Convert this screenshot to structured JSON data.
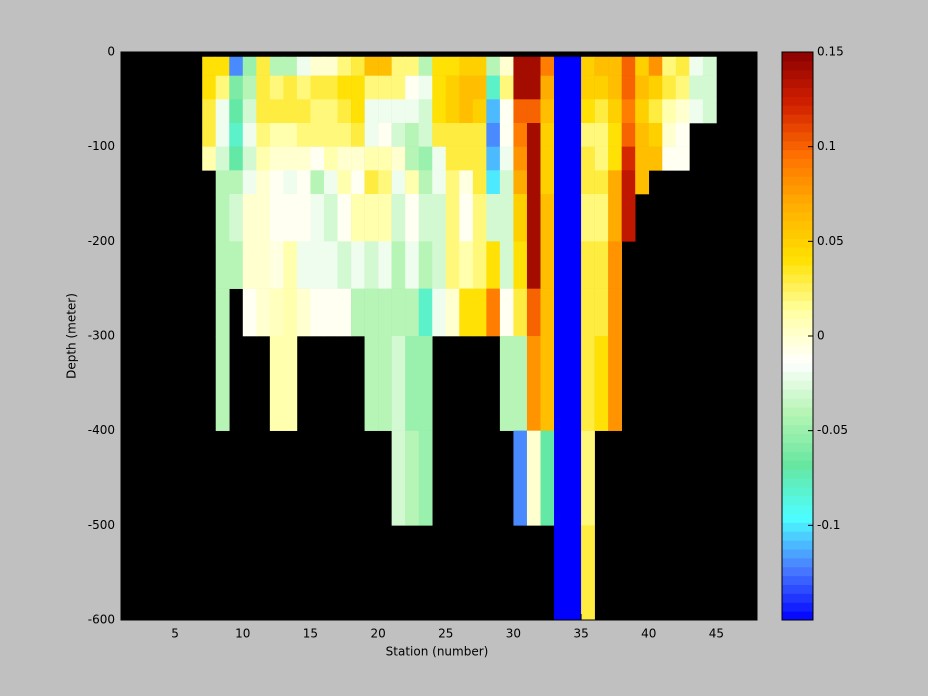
{
  "chart_data": {
    "type": "heatmap",
    "xlabel": "Station (number)",
    "ylabel": "Depth (meter)",
    "xlim": [
      1,
      48
    ],
    "ylim": [
      -600,
      0
    ],
    "xticks": [
      5,
      10,
      15,
      20,
      25,
      30,
      35,
      40,
      45
    ],
    "yticks": [
      -600,
      -500,
      -400,
      -300,
      -200,
      -100,
      0
    ],
    "clim": [
      -0.15,
      0.15
    ],
    "cticks": [
      -0.1,
      -0.05,
      0,
      0.05,
      0.1,
      0.15
    ],
    "colormap": [
      "#0000ff",
      "#4a7dff",
      "#4dffff",
      "#66e6a0",
      "#b4f5b4",
      "#ffffff",
      "#ffffa0",
      "#ffe000",
      "#ffb000",
      "#ff7000",
      "#d22000",
      "#8b0000"
    ],
    "background": "#000000",
    "x_edges": [
      7,
      8,
      9,
      10,
      11,
      12,
      13,
      14,
      15,
      16,
      17,
      18,
      19,
      20,
      21,
      22,
      23,
      24,
      25,
      26,
      27,
      28,
      29,
      30,
      31,
      32,
      33,
      34,
      35,
      36,
      37,
      38,
      39,
      40,
      41,
      42,
      43,
      44,
      45
    ],
    "y_edges": [
      -5,
      -25,
      -50,
      -75,
      -100,
      -125,
      -150,
      -200,
      -250,
      -300,
      -400,
      -500,
      -600
    ],
    "z": [
      [
        0.04,
        0.04,
        0.03,
        0.03,
        0.01,
        null,
        null,
        null,
        null,
        null,
        null,
        null
      ],
      [
        0.04,
        0.02,
        -0.02,
        -0.02,
        -0.03,
        -0.04,
        -0.04,
        -0.04,
        -0.04,
        -0.04,
        null,
        null
      ],
      [
        -0.12,
        -0.06,
        -0.07,
        -0.08,
        -0.07,
        -0.04,
        -0.03,
        -0.04,
        null,
        null,
        null,
        null
      ],
      [
        -0.05,
        -0.04,
        -0.03,
        -0.02,
        -0.03,
        -0.02,
        0,
        0,
        -0.01,
        null,
        null,
        null
      ],
      [
        0.03,
        0.03,
        0.03,
        0.02,
        0.01,
        0,
        0,
        0,
        0,
        null,
        null,
        null
      ],
      [
        -0.04,
        0.02,
        0.03,
        0.01,
        0,
        -0.01,
        -0.01,
        -0.005,
        0.005,
        0.01,
        null,
        null
      ],
      [
        -0.04,
        0.03,
        0.03,
        0.01,
        0,
        -0.02,
        -0.01,
        0.01,
        0.01,
        0.01,
        null,
        null
      ],
      [
        -0.02,
        0.02,
        0.03,
        0.02,
        0,
        -0.01,
        -0.01,
        -0.02,
        0,
        null,
        null,
        null
      ],
      [
        0,
        0.03,
        0.02,
        0.02,
        -0.01,
        -0.04,
        -0.02,
        -0.02,
        -0.01,
        null,
        null,
        null
      ],
      [
        0,
        0.03,
        0.02,
        0.02,
        0.01,
        -0.02,
        -0.03,
        -0.02,
        -0.01,
        null,
        null,
        null
      ],
      [
        0.02,
        0.04,
        0.03,
        0.02,
        0,
        0.01,
        -0.01,
        -0.03,
        -0.01,
        null,
        null,
        null
      ],
      [
        0.03,
        0.04,
        0.04,
        0.03,
        0,
        -0.01,
        0.01,
        -0.02,
        -0.04,
        null,
        null,
        null
      ],
      [
        0.06,
        0.02,
        -0.02,
        -0.02,
        0.01,
        0.03,
        0.01,
        -0.03,
        -0.04,
        -0.04,
        null,
        null
      ],
      [
        0.06,
        0.02,
        -0.02,
        -0.01,
        0.01,
        0.02,
        0.01,
        -0.02,
        -0.04,
        -0.04,
        null,
        null
      ],
      [
        0.02,
        0.02,
        -0.02,
        -0.03,
        0,
        -0.02,
        -0.03,
        -0.04,
        -0.04,
        -0.03,
        -0.03,
        null
      ],
      [
        0.02,
        -0.01,
        -0.02,
        -0.04,
        -0.04,
        0.01,
        -0.01,
        -0.02,
        -0.04,
        -0.05,
        -0.04,
        null
      ],
      [
        -0.04,
        -0.02,
        -0.03,
        -0.03,
        -0.05,
        -0.04,
        -0.03,
        -0.04,
        -0.08,
        -0.05,
        -0.05,
        null
      ],
      [
        0.04,
        0.04,
        0.04,
        0.03,
        -0.02,
        -0.02,
        -0.03,
        -0.03,
        -0.02,
        null,
        null,
        null
      ],
      [
        0.04,
        0.05,
        0.05,
        0.03,
        0.03,
        0.02,
        0.02,
        0.02,
        0,
        null,
        null,
        null
      ],
      [
        0.05,
        0.06,
        0.06,
        0.03,
        0.03,
        -0.005,
        -0.01,
        0.01,
        0.04,
        null,
        null,
        null
      ],
      [
        0.05,
        0.06,
        0.05,
        0.03,
        0.03,
        0.03,
        0.02,
        0.02,
        0.04,
        null,
        null,
        null
      ],
      [
        -0.04,
        -0.08,
        -0.11,
        -0.12,
        -0.11,
        -0.1,
        -0.03,
        0.04,
        0.09,
        null,
        null,
        null
      ],
      [
        0,
        0.02,
        -0.01,
        -0.01,
        -0.02,
        -0.03,
        -0.03,
        -0.03,
        -0.01,
        -0.04,
        null,
        null
      ],
      [
        0.14,
        0.14,
        0.1,
        0.09,
        0.08,
        0.07,
        0.05,
        0.04,
        0.03,
        -0.04,
        -0.12,
        null
      ],
      [
        0.14,
        0.14,
        0.1,
        0.14,
        0.14,
        0.14,
        0.14,
        0.14,
        0.1,
        0.08,
        0,
        null
      ],
      [
        0.09,
        0.07,
        0.06,
        0.05,
        0.05,
        0.05,
        0.06,
        0.06,
        0.06,
        0.06,
        -0.07,
        null
      ],
      [
        -0.15,
        -0.15,
        -0.15,
        -0.15,
        -0.15,
        -0.15,
        -0.15,
        -0.15,
        -0.15,
        -0.15,
        -0.15,
        -0.15
      ],
      [
        -0.15,
        -0.15,
        -0.15,
        -0.15,
        -0.15,
        -0.15,
        -0.15,
        -0.15,
        -0.15,
        -0.15,
        -0.15,
        -0.15
      ],
      [
        0.05,
        0.05,
        0.04,
        0.02,
        0.03,
        0.03,
        0.02,
        0.03,
        0.03,
        0.03,
        0.02,
        0.03
      ],
      [
        0.06,
        0.05,
        0.03,
        0.02,
        0.02,
        0.03,
        0.02,
        0.03,
        0.03,
        0.04,
        null,
        null
      ],
      [
        0.06,
        0.06,
        0.05,
        0.04,
        0.04,
        0.07,
        0.07,
        0.08,
        0.08,
        0.08,
        null,
        null
      ],
      [
        0.1,
        0.1,
        0.09,
        0.1,
        0.12,
        0.13,
        0.13,
        null,
        null,
        null,
        null,
        null
      ],
      [
        0.05,
        0.06,
        0.05,
        0.06,
        0.06,
        0.06,
        null,
        null,
        null,
        null,
        null,
        null
      ],
      [
        0.08,
        0.05,
        0.03,
        0.05,
        0.06,
        null,
        null,
        null,
        null,
        null,
        null,
        null
      ],
      [
        0.02,
        0.03,
        0.01,
        0,
        -0.01,
        null,
        null,
        null,
        null,
        null,
        null,
        null
      ],
      [
        0.03,
        0.02,
        0,
        -0.01,
        -0.01,
        null,
        null,
        null,
        null,
        null,
        null,
        null
      ],
      [
        -0.02,
        -0.03,
        -0.02,
        null,
        null,
        null,
        null,
        null,
        null,
        null,
        null,
        null
      ],
      [
        -0.03,
        -0.03,
        -0.03,
        null,
        null,
        null,
        null,
        null,
        null,
        null,
        null,
        null
      ]
    ]
  }
}
